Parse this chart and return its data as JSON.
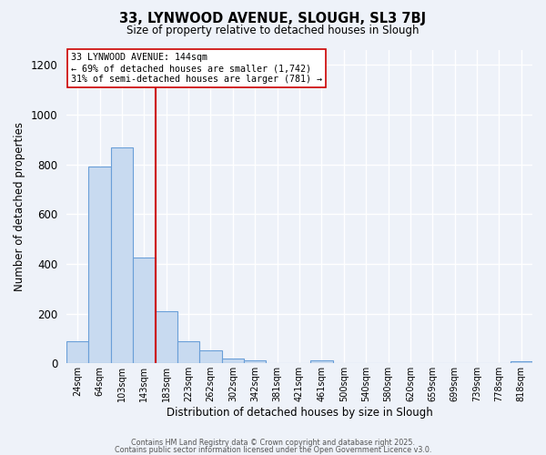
{
  "title": "33, LYNWOOD AVENUE, SLOUGH, SL3 7BJ",
  "subtitle": "Size of property relative to detached houses in Slough",
  "xlabel": "Distribution of detached houses by size in Slough",
  "ylabel": "Number of detached properties",
  "bar_labels": [
    "24sqm",
    "64sqm",
    "103sqm",
    "143sqm",
    "183sqm",
    "223sqm",
    "262sqm",
    "302sqm",
    "342sqm",
    "381sqm",
    "421sqm",
    "461sqm",
    "500sqm",
    "540sqm",
    "580sqm",
    "620sqm",
    "659sqm",
    "699sqm",
    "739sqm",
    "778sqm",
    "818sqm"
  ],
  "bar_values": [
    90,
    790,
    870,
    425,
    210,
    90,
    52,
    18,
    12,
    0,
    0,
    12,
    0,
    0,
    0,
    0,
    0,
    0,
    0,
    0,
    8
  ],
  "bar_color": "#c8daf0",
  "bar_edge_color": "#6a9fd8",
  "vline_x_idx": 3,
  "vline_color": "#cc0000",
  "annotation_line1": "33 LYNWOOD AVENUE: 144sqm",
  "annotation_line2": "← 69% of detached houses are smaller (1,742)",
  "annotation_line3": "31% of semi-detached houses are larger (781) →",
  "ylim": [
    0,
    1260
  ],
  "yticks": [
    0,
    200,
    400,
    600,
    800,
    1000,
    1200
  ],
  "background_color": "#eef2f9",
  "grid_color": "#ffffff",
  "footer1": "Contains HM Land Registry data © Crown copyright and database right 2025.",
  "footer2": "Contains public sector information licensed under the Open Government Licence v3.0."
}
